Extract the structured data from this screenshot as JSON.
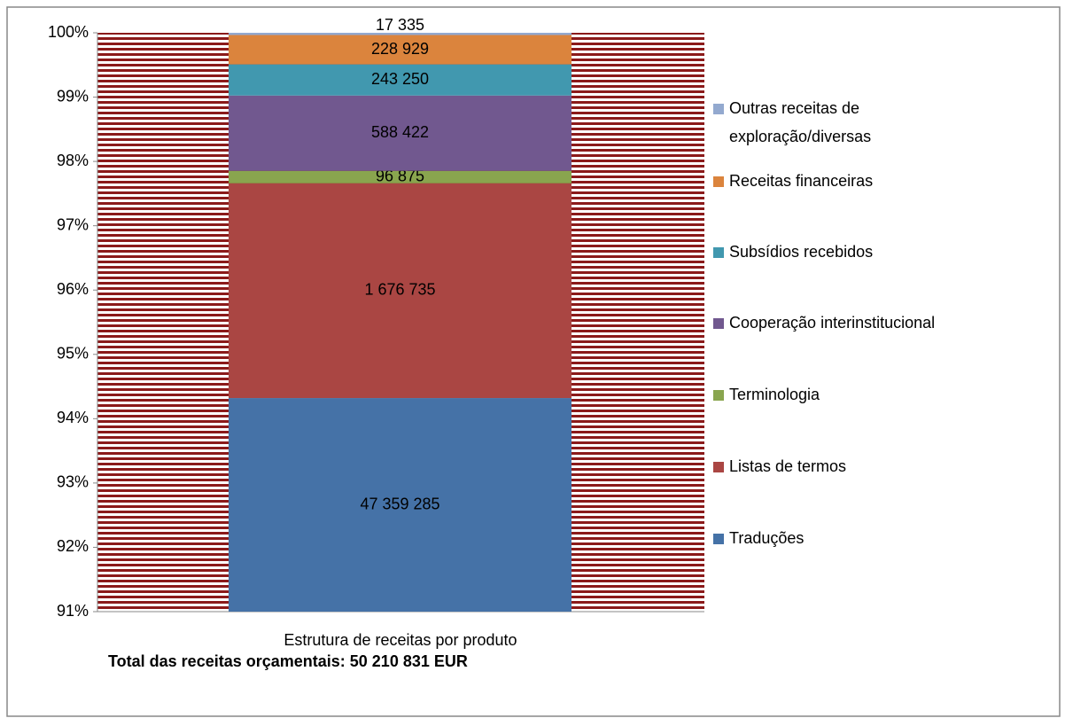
{
  "chart_data": {
    "type": "stacked_percent_bar",
    "categories": [
      "Estrutura de receitas por produto"
    ],
    "note": "Total das receitas orçamentais: 50 210 831 EUR",
    "series": [
      {
        "name": "Traduções",
        "color": "#4572a7",
        "values": [
          47359285
        ],
        "value_labels": [
          "47 359 285"
        ]
      },
      {
        "name": "Listas de termos",
        "color": "#aa4643",
        "values": [
          1676735
        ],
        "value_labels": [
          "1 676 735"
        ]
      },
      {
        "name": "Terminologia",
        "color": "#89a54e",
        "values": [
          96875
        ],
        "value_labels": [
          "96 875"
        ]
      },
      {
        "name": "Cooperação interinstitucional",
        "color": "#71588f",
        "values": [
          588422
        ],
        "value_labels": [
          "588 422"
        ]
      },
      {
        "name": "Subsídios recebidos",
        "color": "#4198af",
        "values": [
          243250
        ],
        "value_labels": [
          "243 250"
        ]
      },
      {
        "name": "Receitas financeiras",
        "color": "#db843d",
        "values": [
          228929
        ],
        "value_labels": [
          "228 929"
        ]
      },
      {
        "name": "Outras receitas de exploração/diversas",
        "color": "#93a9cf",
        "values": [
          17335
        ],
        "value_labels": [
          "17 335"
        ]
      }
    ],
    "ylim": [
      91,
      100
    ],
    "yticks": [
      {
        "value": 91,
        "label": "91%"
      },
      {
        "value": 92,
        "label": "92%"
      },
      {
        "value": 93,
        "label": "93%"
      },
      {
        "value": 94,
        "label": "94%"
      },
      {
        "value": 95,
        "label": "95%"
      },
      {
        "value": 96,
        "label": "96%"
      },
      {
        "value": 97,
        "label": "97%"
      },
      {
        "value": 98,
        "label": "98%"
      },
      {
        "value": 99,
        "label": "99%"
      },
      {
        "value": 100,
        "label": "100%"
      }
    ],
    "legend": "right"
  }
}
